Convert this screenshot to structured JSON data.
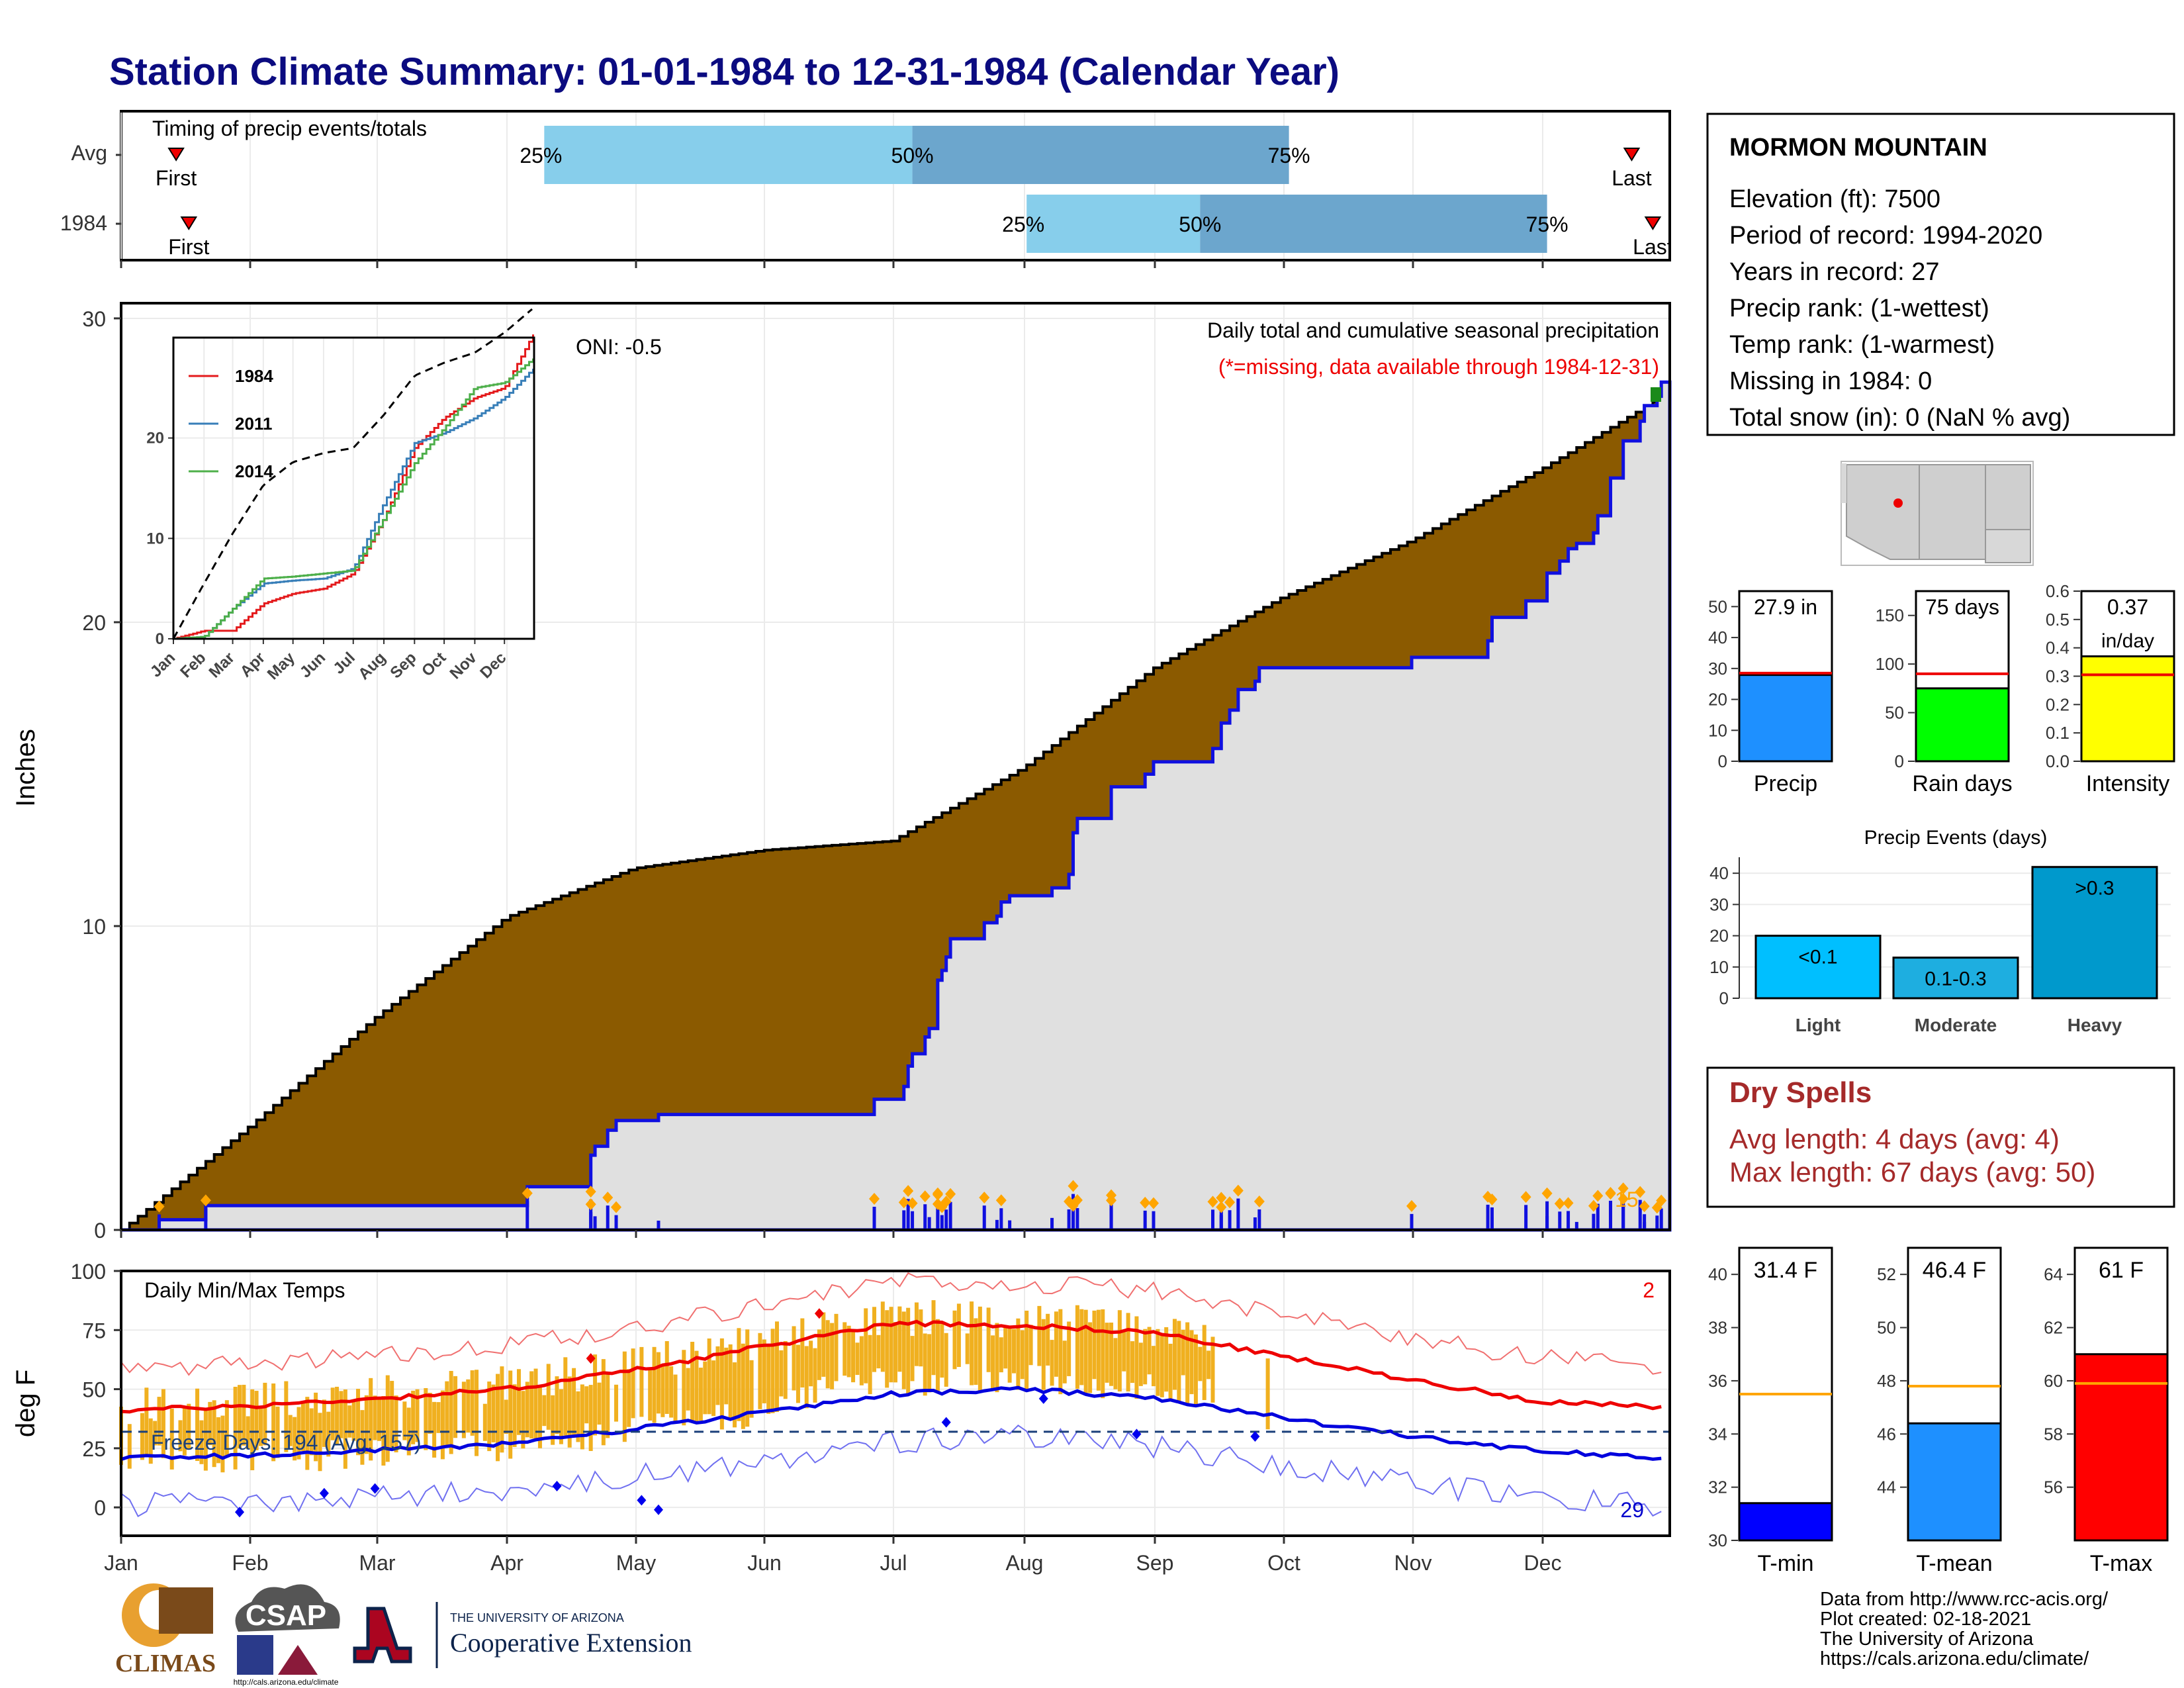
{
  "title": "Station Climate Summary: 01-01-1984 to 12-31-1984 (Calendar Year)",
  "timing": {
    "heading": "Timing of precip events/totals",
    "rows": [
      {
        "name": "Avg",
        "first": "First",
        "last": "Last",
        "p25": "25%",
        "p50": "50%",
        "p75": "75%",
        "first_day": 13,
        "last_day": 357,
        "p25_day": 100,
        "p50_day": 187,
        "p75_day": 276
      },
      {
        "name": "1984",
        "first": "First",
        "last": "Last",
        "p25": "25%",
        "p50": "50%",
        "p75": "75%",
        "first_day": 16,
        "last_day": 362,
        "p25_day": 214,
        "p50_day": 255,
        "p75_day": 337
      }
    ]
  },
  "main_chart": {
    "ylabel": "Inches",
    "yticks": [
      "0",
      "10",
      "20",
      "30"
    ],
    "caption": "Daily total and cumulative seasonal precipitation",
    "missing_note": "(*=missing, data available through 1984-12-31)",
    "oni": "ONI: -0.5",
    "extreme_count": "15",
    "colors": {
      "avg_fill": "#8b5a00",
      "year_fill": "#e0e0e0",
      "year_line": "#1010e0",
      "bars": "#1010e0",
      "diamonds": "#ffa500"
    }
  },
  "inset": {
    "legend": [
      {
        "name": "1984",
        "color": "#e41a1c"
      },
      {
        "name": "2011",
        "color": "#377eb8"
      },
      {
        "name": "2014",
        "color": "#4daf4a"
      }
    ],
    "yticks": [
      "0",
      "10",
      "20"
    ],
    "months": [
      "Jan",
      "Feb",
      "Mar",
      "Apr",
      "May",
      "Jun",
      "Jul",
      "Aug",
      "Sep",
      "Oct",
      "Nov",
      "Dec"
    ]
  },
  "temp_chart": {
    "ylabel": "deg F",
    "heading": "Daily Min/Max Temps",
    "yticks": [
      "0",
      "25",
      "50",
      "75",
      "100"
    ],
    "freeze_label": "Freeze Days: 194 (Avg: 157)",
    "hot_count": "2",
    "cold_count": "29",
    "months": [
      "Jan",
      "Feb",
      "Mar",
      "Apr",
      "May",
      "Jun",
      "Jul",
      "Aug",
      "Sep",
      "Oct",
      "Nov",
      "Dec"
    ]
  },
  "station": {
    "name": "MORMON MOUNTAIN",
    "lines": [
      "Elevation (ft): 7500",
      "Period of record: 1994-2020",
      "Years in record: 27",
      "Precip rank:  (1-wettest)",
      "Temp rank:  (1-warmest)",
      "Missing in 1984: 0",
      "Total snow (in): 0 (NaN % avg)"
    ]
  },
  "precip_boxes": [
    {
      "label": "Precip",
      "value_text": "27.9 in",
      "value": 27.9,
      "avg": 28.5,
      "max": 55,
      "ticks": [
        "0",
        "10",
        "20",
        "30",
        "40",
        "50"
      ],
      "color": "#1e90ff"
    },
    {
      "label": "Rain days",
      "value_text": "75 days",
      "value": 75,
      "avg": 90,
      "max": 175,
      "ticks": [
        "0",
        "50",
        "100",
        "150"
      ],
      "color": "#00ff00"
    },
    {
      "label": "Intensity",
      "value_text": "0.37",
      "value_sub": "in/day",
      "value": 0.37,
      "avg": 0.305,
      "max": 0.6,
      "ticks": [
        "0.0",
        "0.1",
        "0.2",
        "0.3",
        "0.4",
        "0.5",
        "0.6"
      ],
      "color": "#ffff00"
    }
  ],
  "events_chart": {
    "title": "Precip Events (days)",
    "yticks": [
      "0",
      "10",
      "20",
      "30",
      "40"
    ],
    "bars": [
      {
        "category": "Light",
        "label": "<0.1",
        "value": 20,
        "color": "#00bfff"
      },
      {
        "category": "Moderate",
        "label": "0.1-0.3",
        "value": 13,
        "color": "#1eaee0"
      },
      {
        "category": "Heavy",
        "label": ">0.3",
        "value": 42,
        "color": "#0099cc"
      }
    ]
  },
  "dry_spells": {
    "title": "Dry Spells",
    "avg_line": "Avg length: 4 days (avg: 4)",
    "max_line": "Max length: 67 days (avg: 50)"
  },
  "temp_boxes": [
    {
      "label": "T-min",
      "value_text": "31.4 F",
      "value": 31.4,
      "avg": 35.5,
      "min": 30,
      "max": 41,
      "ticks": [
        "30",
        "32",
        "34",
        "36",
        "38",
        "40"
      ],
      "color": "#0000ff"
    },
    {
      "label": "T-mean",
      "value_text": "46.4 F",
      "value": 46.4,
      "avg": 47.8,
      "min": 42,
      "max": 53,
      "ticks": [
        "44",
        "46",
        "48",
        "50",
        "52"
      ],
      "color": "#1e90ff"
    },
    {
      "label": "T-max",
      "value_text": "61 F",
      "value": 61,
      "avg": 59.9,
      "min": 54,
      "max": 65,
      "ticks": [
        "56",
        "58",
        "60",
        "62",
        "64"
      ],
      "color": "#ff0000"
    }
  ],
  "footer": {
    "lines": [
      "Data from http://www.rcc-acis.org/",
      "Plot created: 02-18-2021",
      "The University of Arizona",
      "https://cals.arizona.edu/climate/"
    ]
  },
  "logos": {
    "climas": "CLIMAS",
    "csap": "CSAP",
    "csap_url": "http://cals.arizona.edu/climate",
    "ua_top": "THE UNIVERSITY OF ARIZONA",
    "ua_bottom": "Cooperative Extension"
  },
  "chart_data": [
    {
      "type": "area",
      "title": "Daily total and cumulative seasonal precipitation",
      "ylabel": "Inches",
      "ylim": [
        0,
        30.5
      ],
      "x": [
        "Jan",
        "Feb",
        "Mar",
        "Apr",
        "May",
        "Jun",
        "Jul",
        "Aug",
        "Sep",
        "Oct",
        "Nov",
        "Dec",
        "Dec31"
      ],
      "series": [
        {
          "name": "Avg cumulative",
          "values": [
            0,
            3.5,
            7.0,
            10.3,
            11.9,
            12.5,
            12.8,
            15.2,
            18.5,
            20.8,
            22.7,
            25.0,
            27.5
          ]
        },
        {
          "name": "1984 cumulative",
          "values": [
            0,
            0.8,
            0.8,
            0.8,
            3.6,
            3.8,
            4.3,
            11.0,
            15.0,
            18.5,
            18.5,
            20.7,
            27.9
          ]
        }
      ]
    },
    {
      "type": "line",
      "title": "Daily Min/Max Temps",
      "ylabel": "deg F",
      "ylim": [
        -12,
        100
      ],
      "x": [
        "Jan",
        "Feb",
        "Mar",
        "Apr",
        "May",
        "Jun",
        "Jul",
        "Aug",
        "Sep",
        "Oct",
        "Nov",
        "Dec",
        "Dec31"
      ],
      "series": [
        {
          "name": "Avg max",
          "values": [
            41,
            43,
            46,
            50,
            58,
            68,
            78,
            77,
            74,
            64,
            54,
            45,
            42
          ]
        },
        {
          "name": "Avg min",
          "values": [
            21,
            22,
            24,
            27,
            33,
            40,
            48,
            50,
            46,
            38,
            30,
            24,
            21
          ]
        }
      ],
      "freeze_threshold": 32
    }
  ]
}
